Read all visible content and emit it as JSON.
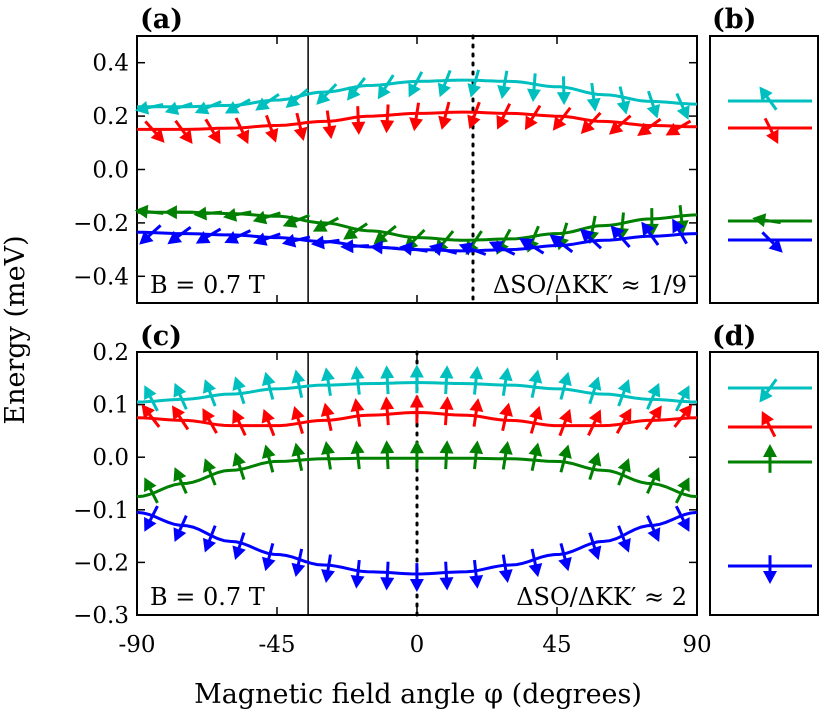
{
  "figure": {
    "ylabel": "Energy (meV)",
    "xlabel": "Magnetic field angle φ (degrees)"
  },
  "chart_data": [
    {
      "panel": "(a)",
      "type": "line",
      "xlim": [
        -90,
        90
      ],
      "ylim": [
        -0.5,
        0.5
      ],
      "xticks": [
        "-90",
        "-45",
        "0",
        "45",
        "90"
      ],
      "yticks": [
        "−0.4",
        "−0.2",
        "0.0",
        "0.2",
        "0.4"
      ],
      "ytick_values": [
        -0.4,
        -0.2,
        0.0,
        0.2,
        0.4
      ],
      "annotation_left": "B = 0.7 T",
      "annotation_right": "ΔSO/ΔKK′ ≈ 1/9",
      "solid_vline_x": -35,
      "dotted_vline_x": 18,
      "series": [
        {
          "color": "#00bfbf",
          "x": [
            -90,
            -75,
            -60,
            -45,
            -30,
            -15,
            0,
            15,
            30,
            45,
            60,
            75,
            90
          ],
          "values": [
            0.235,
            0.235,
            0.24,
            0.26,
            0.29,
            0.315,
            0.33,
            0.335,
            0.33,
            0.31,
            0.28,
            0.255,
            0.245
          ]
        },
        {
          "color": "#ff0000",
          "x": [
            -90,
            -75,
            -60,
            -45,
            -30,
            -15,
            0,
            15,
            30,
            45,
            60,
            75,
            90
          ],
          "values": [
            0.15,
            0.15,
            0.155,
            0.165,
            0.18,
            0.2,
            0.21,
            0.215,
            0.21,
            0.2,
            0.18,
            0.165,
            0.16
          ]
        },
        {
          "color": "#008000",
          "x": [
            -90,
            -75,
            -60,
            -45,
            -30,
            -15,
            0,
            15,
            30,
            45,
            60,
            75,
            90
          ],
          "values": [
            -0.16,
            -0.16,
            -0.165,
            -0.175,
            -0.2,
            -0.23,
            -0.255,
            -0.265,
            -0.26,
            -0.24,
            -0.21,
            -0.185,
            -0.17
          ]
        },
        {
          "color": "#0000ff",
          "x": [
            -90,
            -75,
            -60,
            -45,
            -30,
            -15,
            0,
            15,
            30,
            45,
            60,
            75,
            90
          ],
          "values": [
            -0.235,
            -0.24,
            -0.245,
            -0.255,
            -0.27,
            -0.29,
            -0.3,
            -0.305,
            -0.3,
            -0.285,
            -0.265,
            -0.25,
            -0.24
          ]
        }
      ]
    },
    {
      "panel": "(c)",
      "type": "line",
      "xlim": [
        -90,
        90
      ],
      "ylim": [
        -0.3,
        0.2
      ],
      "xticks": [
        "-90",
        "-45",
        "0",
        "45",
        "90"
      ],
      "yticks": [
        "−0.3",
        "−0.2",
        "−0.1",
        "0.0",
        "0.1",
        "0.2"
      ],
      "ytick_values": [
        -0.3,
        -0.2,
        -0.1,
        0.0,
        0.1,
        0.2
      ],
      "annotation_left": "B = 0.7 T",
      "annotation_right": "ΔSO/ΔKK′ ≈ 2",
      "solid_vline_x": -35,
      "dotted_vline_x": 0,
      "series": [
        {
          "color": "#00bfbf",
          "x": [
            -90,
            -75,
            -60,
            -45,
            -30,
            -15,
            0,
            15,
            30,
            45,
            60,
            75,
            90
          ],
          "values": [
            0.105,
            0.11,
            0.12,
            0.13,
            0.137,
            0.14,
            0.142,
            0.14,
            0.137,
            0.13,
            0.12,
            0.11,
            0.105
          ]
        },
        {
          "color": "#ff0000",
          "x": [
            -90,
            -75,
            -60,
            -45,
            -30,
            -15,
            0,
            15,
            30,
            45,
            60,
            75,
            90
          ],
          "values": [
            0.075,
            0.07,
            0.06,
            0.06,
            0.07,
            0.08,
            0.085,
            0.08,
            0.07,
            0.06,
            0.06,
            0.07,
            0.075
          ]
        },
        {
          "color": "#008000",
          "x": [
            -90,
            -75,
            -60,
            -45,
            -30,
            -15,
            0,
            15,
            30,
            45,
            60,
            75,
            90
          ],
          "values": [
            -0.075,
            -0.05,
            -0.025,
            -0.008,
            -0.003,
            -0.002,
            -0.002,
            -0.002,
            -0.003,
            -0.008,
            -0.025,
            -0.05,
            -0.075
          ]
        },
        {
          "color": "#0000ff",
          "x": [
            -90,
            -75,
            -60,
            -45,
            -30,
            -15,
            0,
            15,
            30,
            45,
            60,
            75,
            90
          ],
          "values": [
            -0.105,
            -0.13,
            -0.16,
            -0.185,
            -0.205,
            -0.218,
            -0.222,
            -0.218,
            -0.205,
            -0.185,
            -0.16,
            -0.13,
            -0.105
          ]
        }
      ]
    }
  ],
  "side_panels": [
    {
      "label": "(b)"
    },
    {
      "label": "(d)"
    }
  ],
  "colors": {
    "cyan": "#00bfbf",
    "red": "#ff0000",
    "green": "#008000",
    "blue": "#0000ff"
  }
}
